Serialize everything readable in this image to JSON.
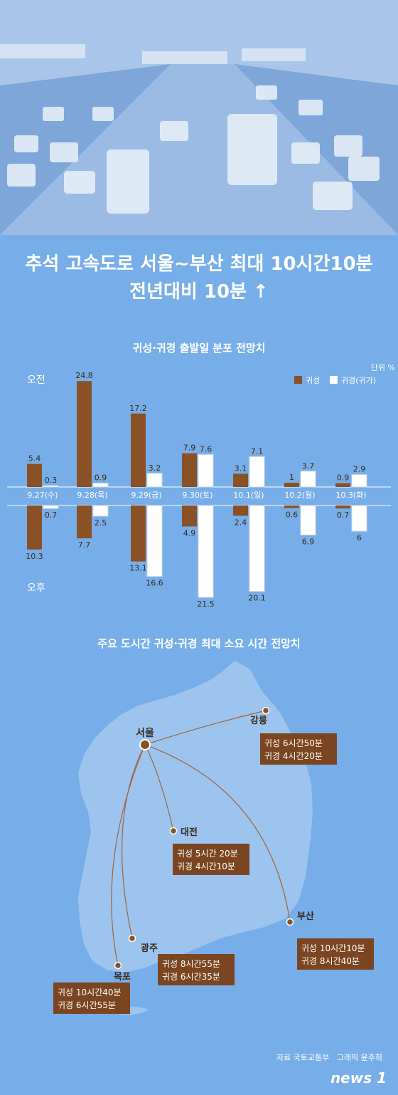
{
  "header": {
    "title_line1": "추석 고속도로 서울~부산 최대 10시간10분",
    "title_line2": "전년대비 10분 ↑"
  },
  "chart_data": {
    "type": "bar",
    "title": "귀성·귀경 출발일 분포 전망치",
    "unit": "단위 %",
    "top_label": "오전",
    "bottom_label": "오후",
    "categories": [
      "9.27(수)",
      "9.28(목)",
      "9.29(금)",
      "9.30(토)",
      "10.1(일)",
      "10.2(월)",
      "10.3(화)"
    ],
    "series": [
      {
        "name": "귀성",
        "color": "#8b5126",
        "am": [
          5.4,
          24.8,
          17.2,
          7.9,
          3.1,
          1.0,
          0.9
        ],
        "pm": [
          10.3,
          7.7,
          13.1,
          4.9,
          2.4,
          0.6,
          0.7
        ]
      },
      {
        "name": "귀경(귀가)",
        "color": "#ffffff",
        "am": [
          0.3,
          0.9,
          3.2,
          7.6,
          7.1,
          3.7,
          2.9
        ],
        "pm": [
          0.7,
          2.5,
          16.6,
          21.5,
          20.1,
          6.9,
          6.0
        ]
      }
    ]
  },
  "map": {
    "title": "주요 도시간 귀성·귀경 최대 소요 시간 전망치",
    "origin": "서울",
    "routes": [
      {
        "city": "강릉",
        "out": "귀성 6시간50분",
        "ret": "귀경 4시간20분"
      },
      {
        "city": "대전",
        "out": "귀성 5시간 20분",
        "ret": "귀경 4시간10분"
      },
      {
        "city": "광주",
        "out": "귀성 8시간55분",
        "ret": "귀경 6시간35분"
      },
      {
        "city": "목포",
        "out": "귀성 10시간40분",
        "ret": "귀경 6시간55분"
      },
      {
        "city": "부산",
        "out": "귀성 10시간10분",
        "ret": "귀경 8시간40분"
      }
    ]
  },
  "footer": {
    "source": "자료 국토교통부",
    "graphic": "그래픽 윤주희",
    "logo": "news 1"
  }
}
